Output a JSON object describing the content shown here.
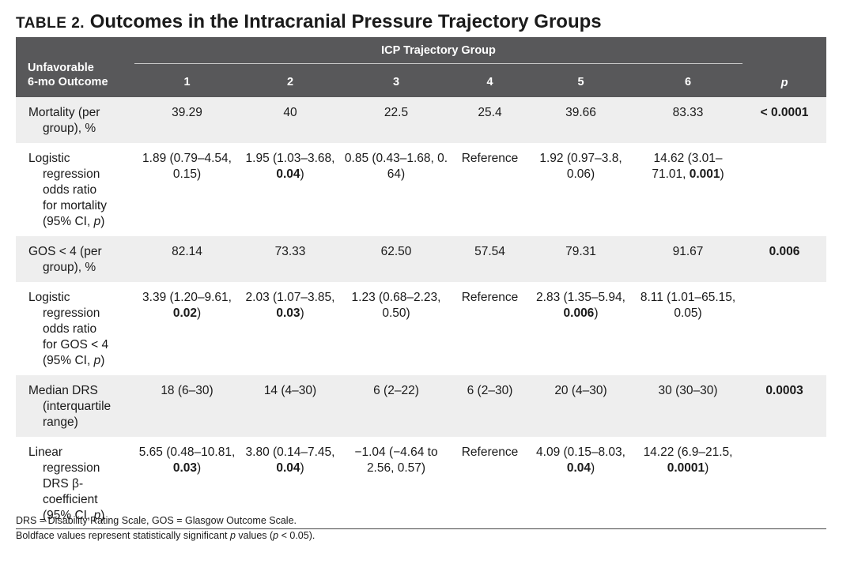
{
  "title": {
    "label": "TABLE 2.",
    "text": "Outcomes in the Intracranial Pressure Trajectory Groups"
  },
  "header": {
    "row_label_line1": "Unfavorable",
    "row_label_line2": "6-mo Outcome",
    "group_label": "ICP Trajectory Group",
    "columns": [
      "1",
      "2",
      "3",
      "4",
      "5",
      "6"
    ],
    "p_label": "p"
  },
  "rows": [
    {
      "label_lines": [
        "Mortality (per",
        "group), %"
      ],
      "cells": [
        "39.29",
        "40",
        "22.5",
        "25.4",
        "39.66",
        "83.33"
      ],
      "p": "< 0.0001",
      "shaded": true
    },
    {
      "label_lines": [
        "Logistic",
        "regression",
        "odds ratio",
        "for mortality",
        "(95% CI, p)"
      ],
      "cells": [
        "1.89 (0.79–4.54, 0.15)",
        "1.95 (1.03–3.68, 0.04)",
        "0.85 (0.43–1.68, 0. 64)",
        "Reference",
        "1.92 (0.97–3.8, 0.06)",
        "14.62 (3.01–71.01, 0.001)"
      ],
      "p": "",
      "shaded": false
    },
    {
      "label_lines": [
        "GOS < 4 (per",
        "group), %"
      ],
      "cells": [
        "82.14",
        "73.33",
        "62.50",
        "57.54",
        "79.31",
        "91.67"
      ],
      "p": "0.006",
      "shaded": true
    },
    {
      "label_lines": [
        "Logistic",
        "regression",
        "odds ratio",
        "for GOS < 4",
        "(95% CI, p)"
      ],
      "cells": [
        "3.39 (1.20–9.61, 0.02)",
        "2.03 (1.07–3.85, 0.03)",
        "1.23 (0.68–2.23, 0.50)",
        "Reference",
        "2.83 (1.35–5.94, 0.006)",
        "8.11 (1.01–65.15, 0.05)"
      ],
      "p": "",
      "shaded": false
    },
    {
      "label_lines": [
        "Median DRS",
        "(interquartile",
        "range)"
      ],
      "cells": [
        "18 (6–30)",
        "14 (4–30)",
        "6 (2–22)",
        "6 (2–30)",
        "20 (4–30)",
        "30 (30–30)"
      ],
      "p": "0.0003",
      "shaded": true
    },
    {
      "label_lines": [
        "Linear",
        "regression",
        "DRS β-",
        "coefficient",
        "(95% CI, p)"
      ],
      "cells": [
        "5.65 (0.48–10.81, 0.03)",
        "3.80 (0.14–7.45, 0.04)",
        "−1.04 (−4.64 to 2.56, 0.57)",
        "Reference",
        "4.09 (0.15–8.03, 0.04)",
        "14.22 (6.9–21.5, 0.0001)"
      ],
      "p": "",
      "shaded": false
    }
  ],
  "footnotes": [
    "DRS = Disability Rating Scale, GOS = Glasgow Outcome Scale.",
    "Boldface values represent statistically significant p values (p < 0.05)."
  ]
}
